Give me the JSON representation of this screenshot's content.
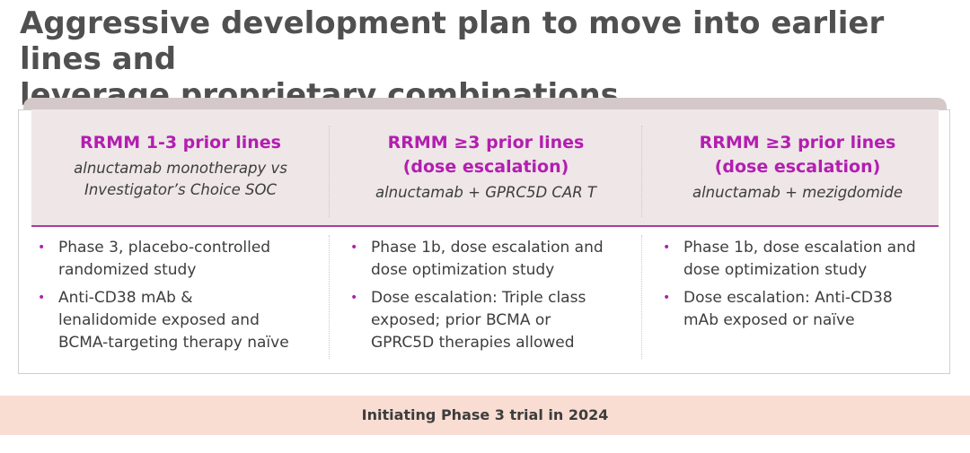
{
  "title": {
    "line1": "Aggressive development plan to move into earlier lines and",
    "line2": "leverage proprietary combinations"
  },
  "columns": [
    {
      "title_lines": [
        "RRMM 1-3 prior lines"
      ],
      "subtitle_lines": [
        "alnuctamab monotherapy vs",
        "Investigator’s Choice SOC"
      ],
      "bullets": [
        [
          "Phase 3, placebo-controlled",
          "randomized study"
        ],
        [
          "Anti-CD38 mAb &",
          "lenalidomide exposed and",
          "BCMA-targeting therapy naïve"
        ]
      ]
    },
    {
      "title_lines": [
        "RRMM ≥3 prior lines",
        "(dose escalation)"
      ],
      "subtitle_lines": [
        "alnuctamab + GPRC5D CAR T"
      ],
      "bullets": [
        [
          "Phase 1b, dose escalation and",
          "dose optimization study"
        ],
        [
          "Dose escalation: Triple class",
          "exposed; prior BCMA or",
          "GPRC5D therapies allowed"
        ]
      ]
    },
    {
      "title_lines": [
        "RRMM ≥3 prior lines",
        "(dose escalation)"
      ],
      "subtitle_lines": [
        "alnuctamab + mezigdomide"
      ],
      "bullets": [
        [
          "Phase 1b, dose escalation and",
          "dose optimization study"
        ],
        [
          "Dose escalation: Anti-CD38",
          "mAb exposed or naïve"
        ]
      ]
    }
  ],
  "footer": "Initiating Phase 3 trial in 2024",
  "colors": {
    "accent_magenta": "#b31eb0",
    "header_band": "#eee6e7",
    "footer_band": "#f9ddd2",
    "title_text": "#505050"
  }
}
